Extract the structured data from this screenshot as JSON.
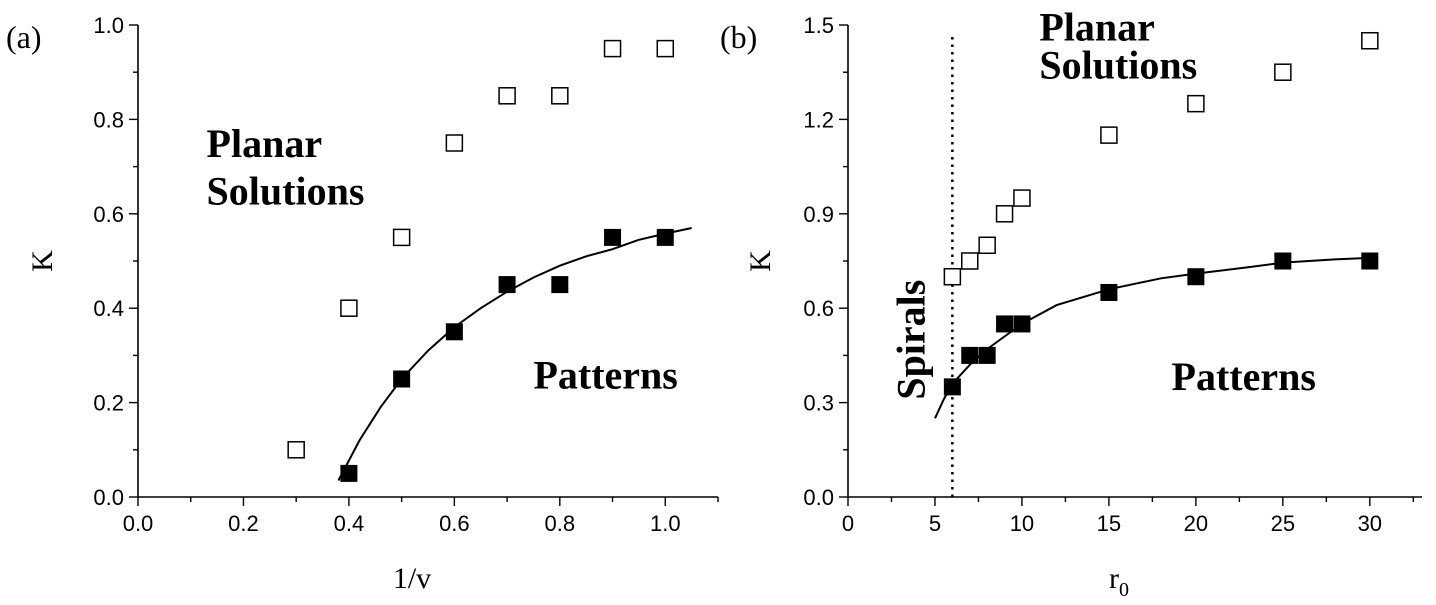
{
  "chart_data": [
    {
      "type": "scatter",
      "panel_label": "(a)",
      "title": "",
      "xlabel": "1/v",
      "ylabel": "K",
      "xlim": [
        0.0,
        1.1
      ],
      "ylim": [
        0.0,
        1.0
      ],
      "x_ticks": [
        "0.0",
        "0.2",
        "0.4",
        "0.6",
        "0.8",
        "1.0"
      ],
      "y_ticks": [
        "0.0",
        "0.2",
        "0.4",
        "0.6",
        "0.8",
        "1.0"
      ],
      "grid": false,
      "series": [
        {
          "marker": "open-square",
          "points": [
            [
              0.3,
              0.1
            ],
            [
              0.4,
              0.4
            ],
            [
              0.5,
              0.55
            ],
            [
              0.6,
              0.75
            ],
            [
              0.7,
              0.85
            ],
            [
              0.8,
              0.85
            ],
            [
              0.9,
              0.95
            ],
            [
              1.0,
              0.95
            ]
          ]
        },
        {
          "marker": "filled-square",
          "points": [
            [
              0.4,
              0.05
            ],
            [
              0.5,
              0.25
            ],
            [
              0.6,
              0.35
            ],
            [
              0.7,
              0.45
            ],
            [
              0.8,
              0.45
            ],
            [
              0.9,
              0.55
            ],
            [
              1.0,
              0.55
            ]
          ]
        },
        {
          "marker": "line",
          "points": [
            [
              0.38,
              0.035
            ],
            [
              0.42,
              0.12
            ],
            [
              0.46,
              0.19
            ],
            [
              0.5,
              0.25
            ],
            [
              0.55,
              0.31
            ],
            [
              0.6,
              0.36
            ],
            [
              0.65,
              0.4
            ],
            [
              0.7,
              0.435
            ],
            [
              0.75,
              0.465
            ],
            [
              0.8,
              0.49
            ],
            [
              0.85,
              0.51
            ],
            [
              0.9,
              0.525
            ],
            [
              0.95,
              0.545
            ],
            [
              1.0,
              0.558
            ],
            [
              1.05,
              0.57
            ]
          ]
        }
      ],
      "annotations": [
        {
          "text": "Planar",
          "x": 0.13,
          "y": 0.72
        },
        {
          "text": "Solutions",
          "x": 0.13,
          "y": 0.62
        },
        {
          "text": "Patterns",
          "x": 0.75,
          "y": 0.23
        }
      ]
    },
    {
      "type": "scatter",
      "panel_label": "(b)",
      "title": "",
      "xlabel": "r",
      "xlabel_subscript": "0",
      "ylabel": "K",
      "xlim": [
        0,
        33
      ],
      "ylim": [
        0.0,
        1.5
      ],
      "x_ticks": [
        "0",
        "5",
        "10",
        "15",
        "20",
        "25",
        "30"
      ],
      "y_ticks": [
        "0.0",
        "0.3",
        "0.6",
        "0.9",
        "1.2",
        "1.5"
      ],
      "grid": false,
      "vertical_line_x": 6,
      "series": [
        {
          "marker": "open-square",
          "points": [
            [
              6,
              0.7
            ],
            [
              7,
              0.75
            ],
            [
              8,
              0.8
            ],
            [
              9,
              0.9
            ],
            [
              10,
              0.95
            ],
            [
              15,
              1.15
            ],
            [
              20,
              1.25
            ],
            [
              25,
              1.35
            ],
            [
              30,
              1.45
            ]
          ]
        },
        {
          "marker": "filled-square",
          "points": [
            [
              6,
              0.35
            ],
            [
              7,
              0.45
            ],
            [
              8,
              0.45
            ],
            [
              9,
              0.55
            ],
            [
              10,
              0.55
            ],
            [
              15,
              0.65
            ],
            [
              20,
              0.7
            ],
            [
              25,
              0.75
            ],
            [
              30,
              0.75
            ]
          ]
        },
        {
          "marker": "line",
          "points": [
            [
              5,
              0.25
            ],
            [
              5.5,
              0.31
            ],
            [
              6,
              0.36
            ],
            [
              7,
              0.42
            ],
            [
              8,
              0.47
            ],
            [
              9,
              0.51
            ],
            [
              10,
              0.55
            ],
            [
              12,
              0.61
            ],
            [
              15,
              0.66
            ],
            [
              18,
              0.695
            ],
            [
              20,
              0.71
            ],
            [
              23,
              0.73
            ],
            [
              25,
              0.745
            ],
            [
              28,
              0.755
            ],
            [
              30,
              0.76
            ]
          ]
        }
      ],
      "annotations": [
        {
          "text": "Planar",
          "x": 11,
          "y": 1.45
        },
        {
          "text": "Solutions",
          "x": 11,
          "y": 1.33
        },
        {
          "text": "Patterns",
          "x": 18.6,
          "y": 0.34
        },
        {
          "text": "Spirals",
          "x": 4.4,
          "y": 0.5,
          "rotated": true
        }
      ]
    }
  ]
}
